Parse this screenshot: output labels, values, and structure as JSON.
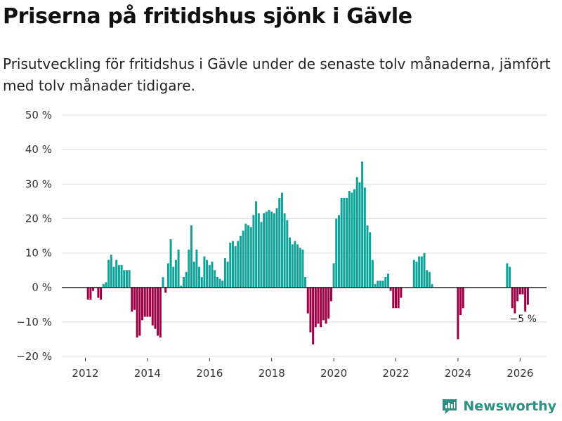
{
  "brand": {
    "name": "Newsworthy",
    "color": "#2e8f83"
  },
  "chart_data": {
    "type": "bar",
    "title": "Priserna på fritidshus sjönk i Gävle",
    "subtitle": "Prisutveckling för fritidshus i Gävle under de senaste tolv månaderna, jämfört med tolv månader tidigare.",
    "xlabel": "",
    "ylabel": "",
    "ylim": [
      -20,
      50
    ],
    "grid": true,
    "yticks": [
      -20,
      -10,
      0,
      10,
      20,
      30,
      40,
      50
    ],
    "ytick_labels": [
      "−20 %",
      "−10 %",
      "0 %",
      "10 %",
      "20 %",
      "30 %",
      "40 %",
      "50 %"
    ],
    "xticks": [
      2012,
      2014,
      2016,
      2018,
      2020,
      2022,
      2024,
      2026
    ],
    "xtick_labels": [
      "2012",
      "2014",
      "2016",
      "2018",
      "2020",
      "2022",
      "2024",
      "2026"
    ],
    "positive_color": "#0fa39a",
    "negative_color": "#9c0045",
    "x_start": 2012.0,
    "x_step_months": 1,
    "values": [
      null,
      -3.5,
      -3.5,
      -1,
      0,
      -3,
      -3.5,
      1,
      1.5,
      8,
      9.5,
      6,
      8,
      6.5,
      6.5,
      5,
      5,
      5,
      -7,
      -6.5,
      -14.5,
      -14,
      -9.5,
      -8.5,
      -8.5,
      -8.5,
      -11,
      -12,
      -14,
      -14.5,
      3,
      -1.5,
      7,
      14,
      6,
      8,
      11,
      0.5,
      3,
      4.5,
      11,
      18,
      7.5,
      11,
      6,
      3,
      9,
      8,
      6.5,
      7.5,
      5,
      3,
      2.5,
      2,
      8.5,
      7.5,
      13,
      13.5,
      12,
      13.5,
      15,
      16.5,
      18.5,
      18,
      17.5,
      21,
      25,
      21.5,
      19,
      21.5,
      22,
      22.5,
      22,
      21.5,
      23,
      26,
      27.5,
      21.5,
      19.5,
      14.5,
      12.5,
      13.5,
      12.5,
      11.5,
      11,
      3,
      -7.5,
      -13,
      -16.5,
      -11.5,
      -10.5,
      -11.5,
      -9.5,
      -10.5,
      -9,
      -4,
      7,
      20,
      21,
      26,
      26,
      26,
      28,
      27.5,
      28.5,
      32,
      30.5,
      36.5,
      29,
      18,
      16,
      8,
      1,
      2,
      2,
      2,
      3,
      4,
      -1,
      -6,
      -6,
      -6,
      -3,
      null,
      null,
      null,
      null,
      8,
      7.5,
      9,
      9,
      10,
      5,
      4.5,
      1,
      null,
      null,
      null,
      null,
      null,
      null,
      null,
      null,
      null,
      -15,
      -8,
      -6,
      null,
      null,
      null,
      null,
      null,
      null,
      null,
      null,
      null,
      null,
      null,
      null,
      null,
      null,
      null,
      null,
      7,
      6,
      -6,
      -7.5,
      -4,
      -2,
      -2,
      -7,
      -5
    ],
    "annotations": [
      {
        "text": "−5 %",
        "x": 2026.1,
        "y": -5
      }
    ]
  }
}
